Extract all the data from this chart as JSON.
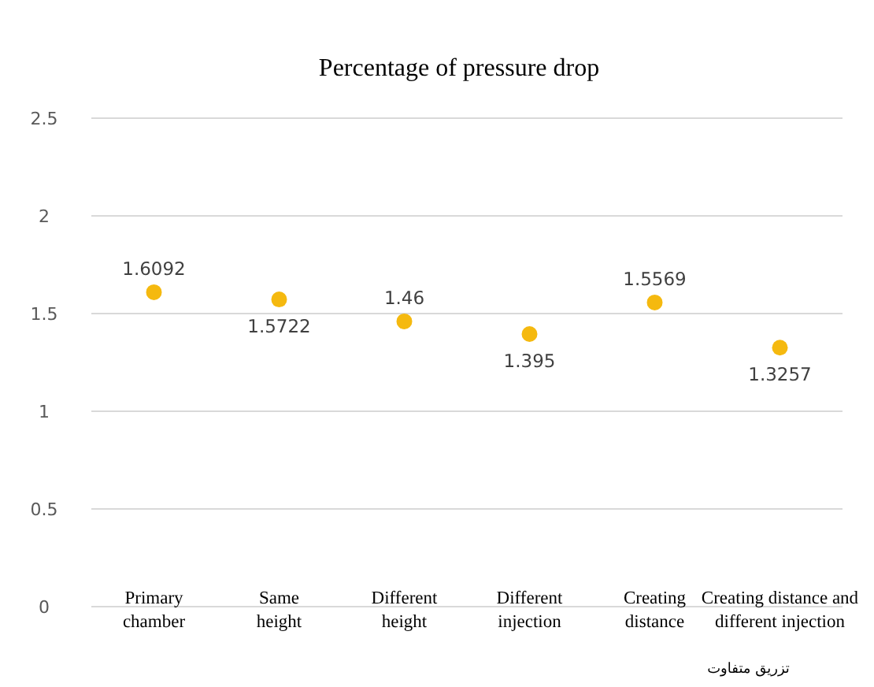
{
  "chart_data": {
    "type": "scatter",
    "title": "Percentage of pressure drop",
    "categories": [
      "Primary chamber",
      "Same height",
      "Different height",
      "Different injection",
      "Creating distance",
      "Creating distance and different injection"
    ],
    "series": [
      {
        "color": "#f5b90f",
        "values": [
          1.6092,
          1.5722,
          1.46,
          1.395,
          1.5569,
          1.3257
        ]
      }
    ],
    "ylim": [
      0,
      2.5
    ],
    "yticks": [
      0,
      0.5,
      1,
      1.5,
      2,
      2.5
    ],
    "grid": "y",
    "data_labels": true,
    "marker": "circle",
    "annotations": [
      "تزریق متفاوت"
    ]
  }
}
